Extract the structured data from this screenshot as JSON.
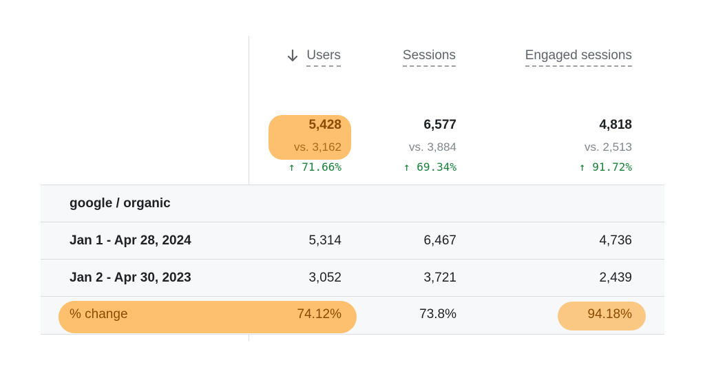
{
  "headers": {
    "users": "Users",
    "sessions": "Sessions",
    "engaged_sessions": "Engaged sessions"
  },
  "sort_icon": "arrow-down-icon",
  "totals": {
    "users": {
      "value": "5,428",
      "vs": "vs. 3,162",
      "change": "71.66%"
    },
    "sessions": {
      "value": "6,577",
      "vs": "vs. 3,884",
      "change": "69.34%"
    },
    "engaged_sessions": {
      "value": "4,818",
      "vs": "vs. 2,513",
      "change": "91.72%"
    }
  },
  "arrow_up": "↑",
  "rows": [
    {
      "label": "google / organic",
      "users": "",
      "sessions": "",
      "engaged_sessions": ""
    },
    {
      "label": "Jan 1 - Apr 28, 2024",
      "users": "5,314",
      "sessions": "6,467",
      "engaged_sessions": "4,736"
    },
    {
      "label": "Jan 2 - Apr 30, 2023",
      "users": "3,052",
      "sessions": "3,721",
      "engaged_sessions": "2,439"
    },
    {
      "label": "% change",
      "users": "74.12%",
      "sessions": "73.8%",
      "engaged_sessions": "94.18%"
    }
  ],
  "colors": {
    "highlight": "#fcc06e",
    "positive": "#188038",
    "grid": "#dadce0",
    "row_shade": "#f7f8fa"
  }
}
